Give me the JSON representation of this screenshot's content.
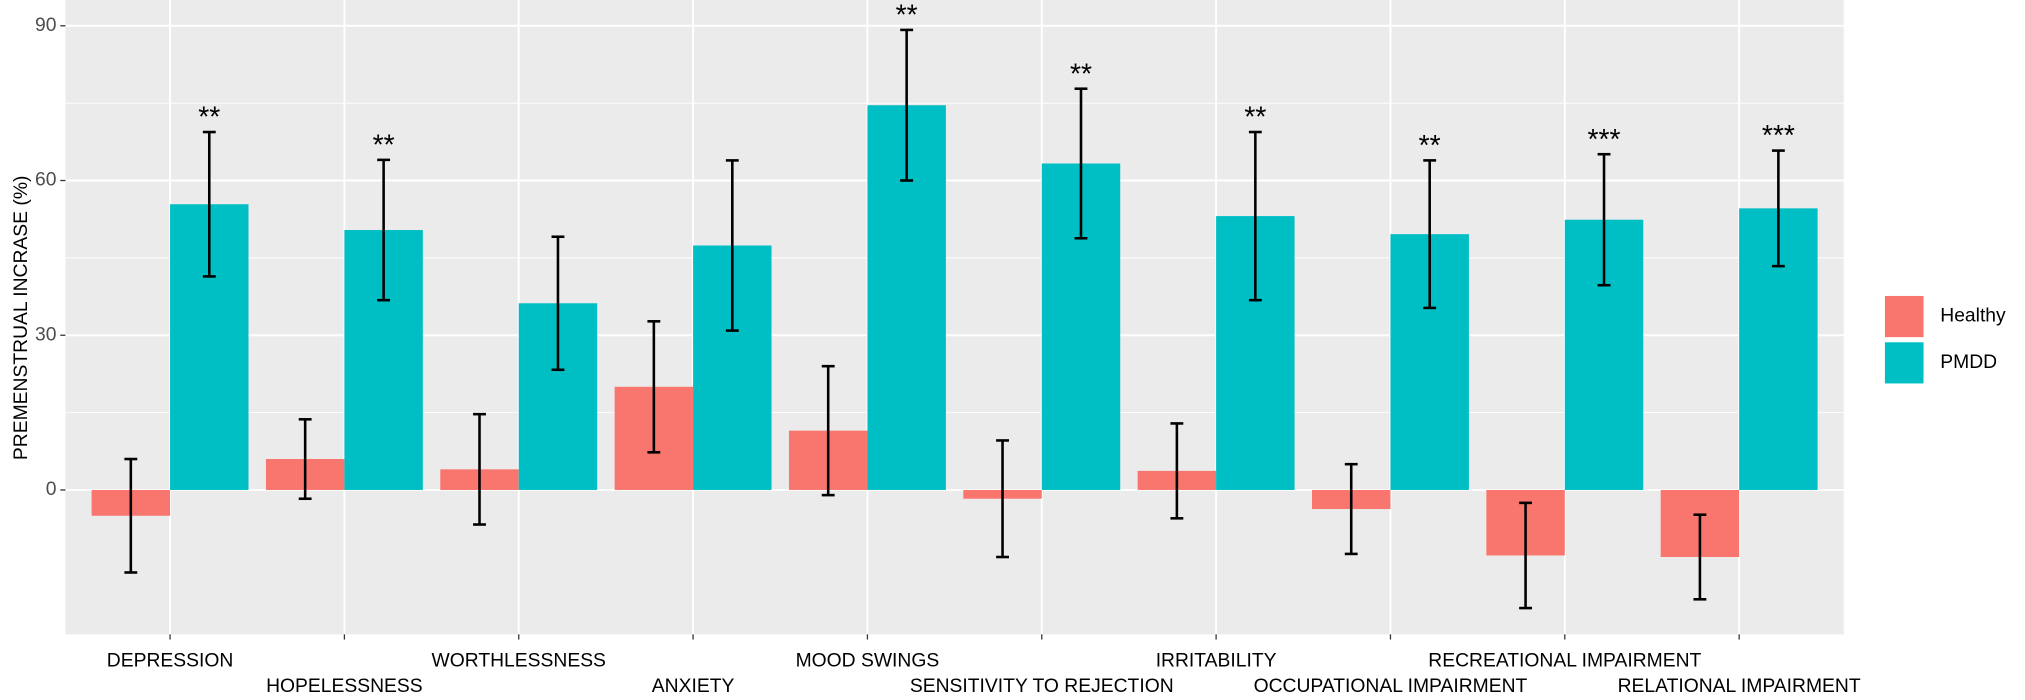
{
  "chart_data": {
    "type": "bar",
    "y_label": "PREMENSTRUAL INCRASE (%)",
    "categories": [
      "DEPRESSION",
      "HOPELESSNESS",
      "WORTHLESSNESS",
      "ANXIETY",
      "MOOD SWINGS",
      "SENSITIVITY TO REJECTION",
      "IRRITABILITY",
      "OCCUPATIONAL IMPAIRMENT",
      "RECREATIONAL IMPAIRMENT",
      "RELATIONAL IMPAIRMENT"
    ],
    "series": [
      {
        "name": "Healthy",
        "color": "#f8766d",
        "values": [
          -5,
          6,
          4,
          20,
          11.5,
          -1.7,
          3.7,
          -3.7,
          -12.7,
          -13
        ],
        "errors": [
          11,
          7.7,
          10.7,
          12.7,
          12.5,
          11.3,
          9.2,
          8.7,
          10.2,
          8.2
        ]
      },
      {
        "name": "PMDD",
        "color": "#00bfc4",
        "values": [
          55.4,
          50.4,
          36.2,
          47.4,
          74.6,
          63.3,
          53.1,
          49.6,
          52.4,
          54.6
        ],
        "errors": [
          14,
          13.6,
          12.9,
          16.5,
          14.6,
          14.5,
          16.3,
          14.3,
          12.7,
          11.2
        ]
      }
    ],
    "annotations": [
      "**",
      "**",
      null,
      null,
      "**",
      "**",
      "**",
      "**",
      "***",
      "***"
    ],
    "ylim": [
      -28,
      95
    ],
    "yticks": [
      0,
      30,
      60,
      90
    ],
    "grid": true,
    "legend": "right"
  }
}
